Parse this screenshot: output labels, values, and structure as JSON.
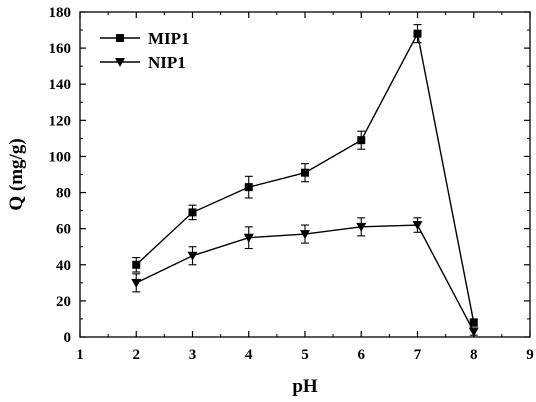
{
  "chart_data": {
    "type": "line",
    "xlabel": "pH",
    "ylabel": "Q (mg/g)",
    "xlim": [
      1,
      9
    ],
    "ylim": [
      0,
      180
    ],
    "xticks": [
      "1",
      "2",
      "3",
      "4",
      "5",
      "6",
      "7",
      "8",
      "9"
    ],
    "yticks": [
      "0",
      "20",
      "40",
      "60",
      "80",
      "100",
      "120",
      "140",
      "160",
      "180"
    ],
    "grid": false,
    "legend_position": "top-left",
    "series": [
      {
        "name": "MIP1",
        "marker": "square",
        "color": "#000000",
        "x": [
          2,
          3,
          4,
          5,
          6,
          7,
          8
        ],
        "y": [
          40,
          69,
          83,
          91,
          109,
          168,
          8
        ],
        "error": [
          4,
          4,
          6,
          5,
          5,
          5,
          2
        ]
      },
      {
        "name": "NIP1",
        "marker": "triangle-down",
        "color": "#000000",
        "x": [
          2,
          3,
          4,
          5,
          6,
          7,
          8
        ],
        "y": [
          30,
          45,
          55,
          57,
          61,
          62,
          3
        ],
        "error": [
          5,
          5,
          6,
          5,
          5,
          4,
          2
        ]
      }
    ]
  }
}
